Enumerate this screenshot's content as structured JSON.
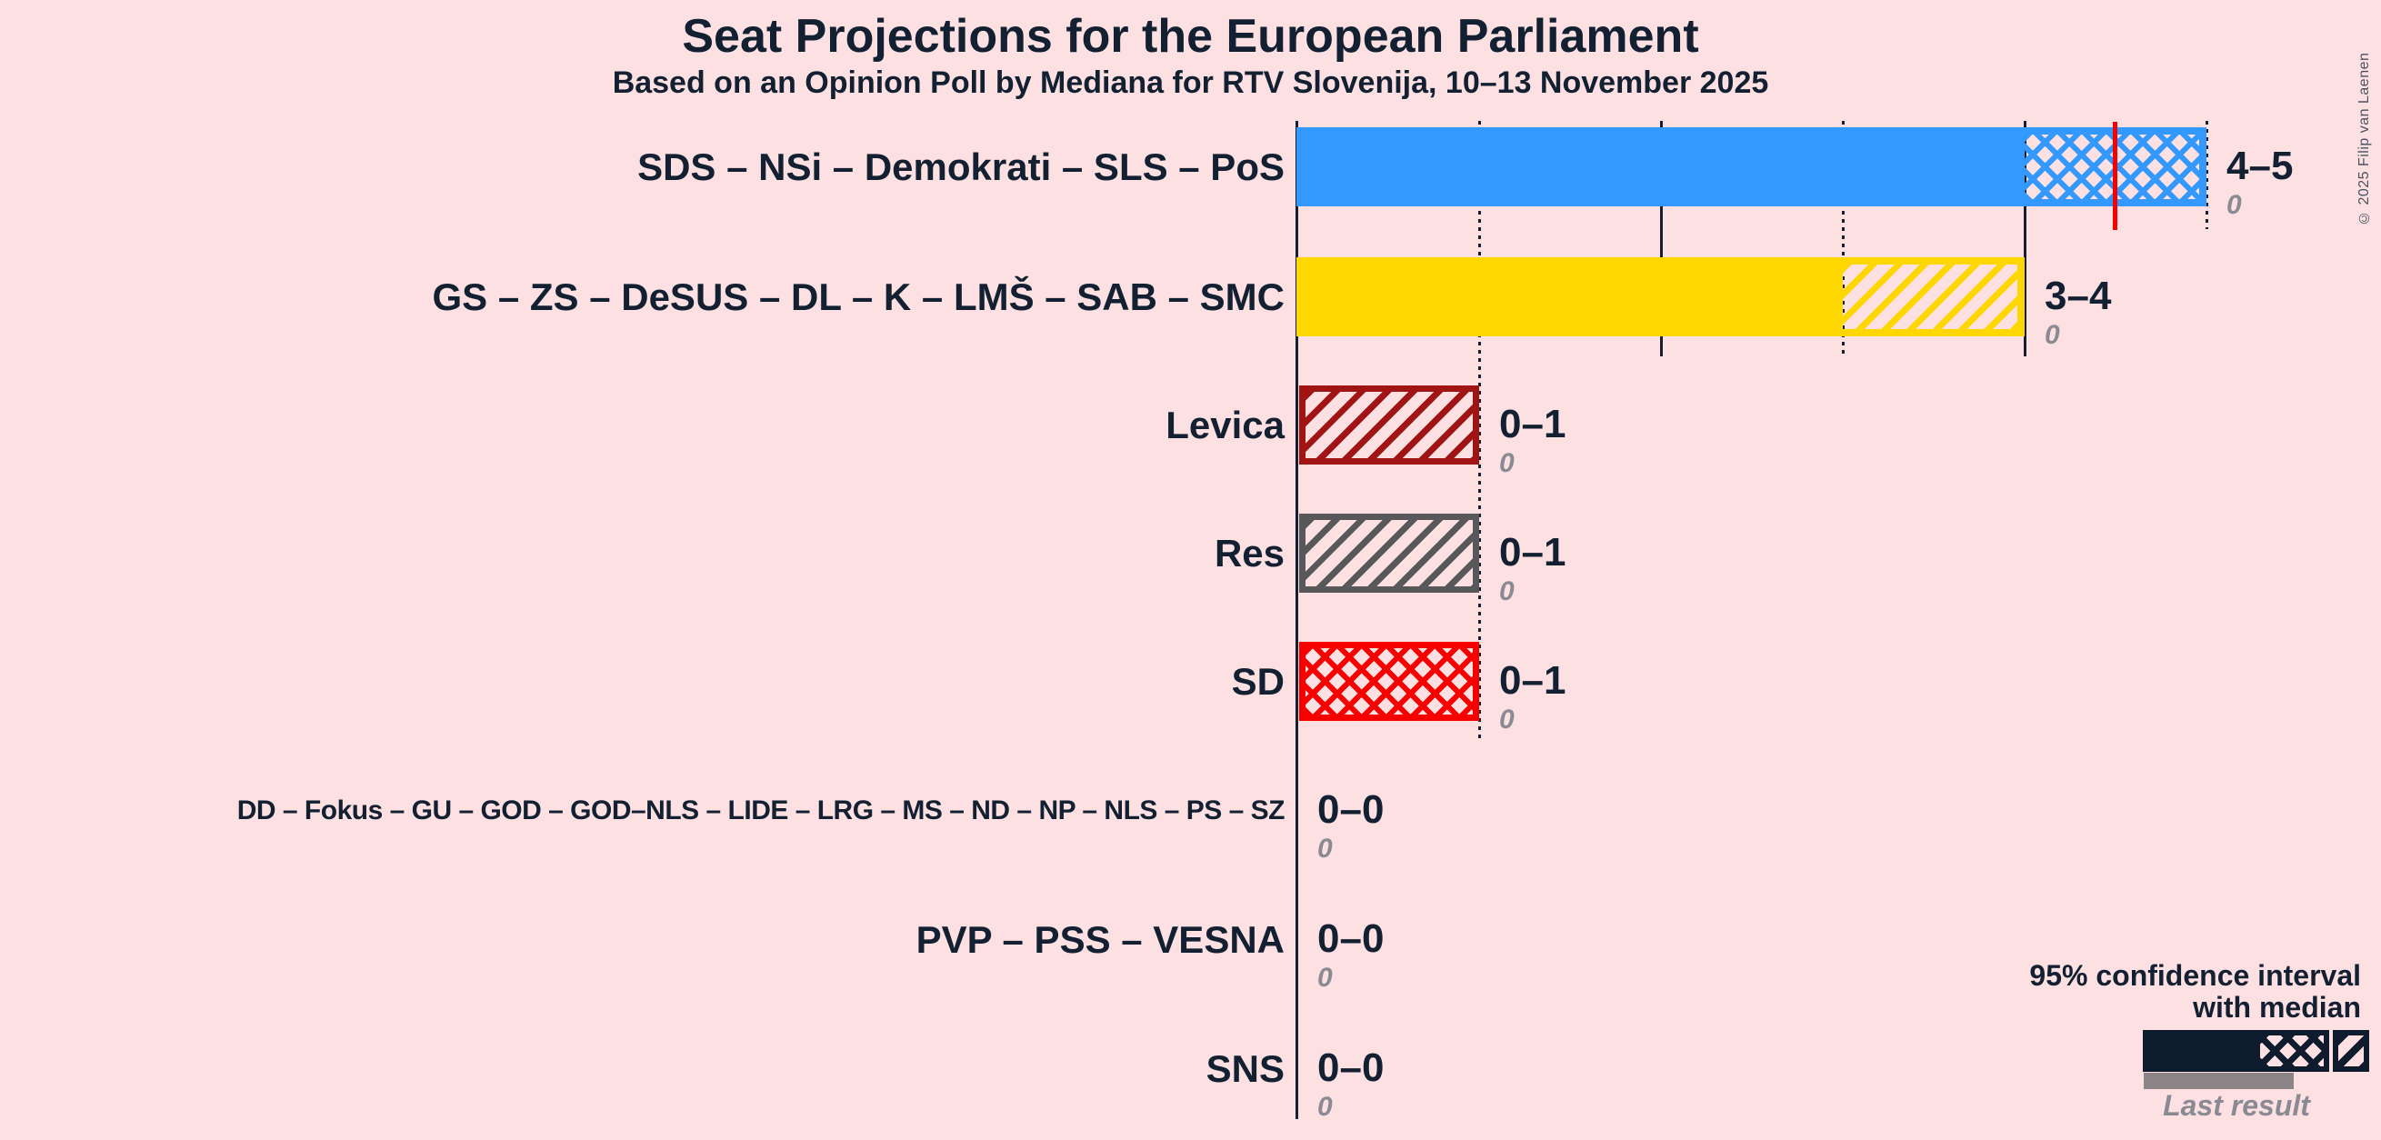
{
  "title": "Seat Projections for the European Parliament",
  "subtitle": "Based on an Opinion Poll by Mediana for RTV Slovenija, 10–13 November 2025",
  "copyright": "© 2025 Filip van Laenen",
  "colors": {
    "background": "#FDE0E2",
    "ink": "#122032",
    "gray_value": "#8A8A92",
    "median": "#F80000",
    "bar_blue": "#3399FF",
    "bar_yellow": "#FFD700",
    "bar_levica": "#A01414",
    "bar_res": "#58585A",
    "bar_sd": "#F70000",
    "legend_dark": "#0E1B2C",
    "legend_gray": "#8D8488",
    "copyright_gray": "#4A5260"
  },
  "legend": {
    "line1": "95% confidence interval",
    "line2": "with median",
    "last_result_label": "Last result"
  },
  "chart_data": {
    "type": "bar",
    "title": "Seat Projections for the European Parliament",
    "subtitle": "Based on an Opinion Poll by Mediana for RTV Slovenija, 10–13 November 2025",
    "xlabel": "",
    "ylabel": "",
    "xlim": [
      0,
      5
    ],
    "gridlines": [
      0,
      1,
      2,
      3,
      4,
      5
    ],
    "legend_position": "bottom-right",
    "rows": [
      {
        "label": "SDS – NSi – Demokrati – SLS – PoS",
        "ci_low": 4,
        "ci_high": 5,
        "median": 4.5,
        "value_label": "4–5",
        "last_result": 0,
        "color": "#3399FF",
        "ci_pattern": "crosshatch"
      },
      {
        "label": "GS – ZS – DeSUS – DL – K – LMŠ – SAB – SMC",
        "ci_low": 3,
        "ci_high": 4,
        "value_label": "3–4",
        "last_result": 0,
        "color": "#FFD700",
        "ci_pattern": "diagonal"
      },
      {
        "label": "Levica",
        "ci_low": 0,
        "ci_high": 1,
        "value_label": "0–1",
        "last_result": 0,
        "color": "#A01414",
        "ci_pattern": "diagonal"
      },
      {
        "label": "Res",
        "ci_low": 0,
        "ci_high": 1,
        "value_label": "0–1",
        "last_result": 0,
        "color": "#58585A",
        "ci_pattern": "diagonal"
      },
      {
        "label": "SD",
        "ci_low": 0,
        "ci_high": 1,
        "value_label": "0–1",
        "last_result": 0,
        "color": "#F70000",
        "ci_pattern": "crosshatch"
      },
      {
        "label": "DD – Fokus – GU – GOD – GOD–NLS – LIDE – LRG – MS – ND – NP – NLS – PS – SZ",
        "ci_low": 0,
        "ci_high": 0,
        "value_label": "0–0",
        "last_result": 0,
        "color": null,
        "ci_pattern": null
      },
      {
        "label": "PVP – PSS – VESNA",
        "ci_low": 0,
        "ci_high": 0,
        "value_label": "0–0",
        "last_result": 0,
        "color": null,
        "ci_pattern": null
      },
      {
        "label": "SNS",
        "ci_low": 0,
        "ci_high": 0,
        "value_label": "0–0",
        "last_result": 0,
        "color": null,
        "ci_pattern": null
      }
    ]
  }
}
